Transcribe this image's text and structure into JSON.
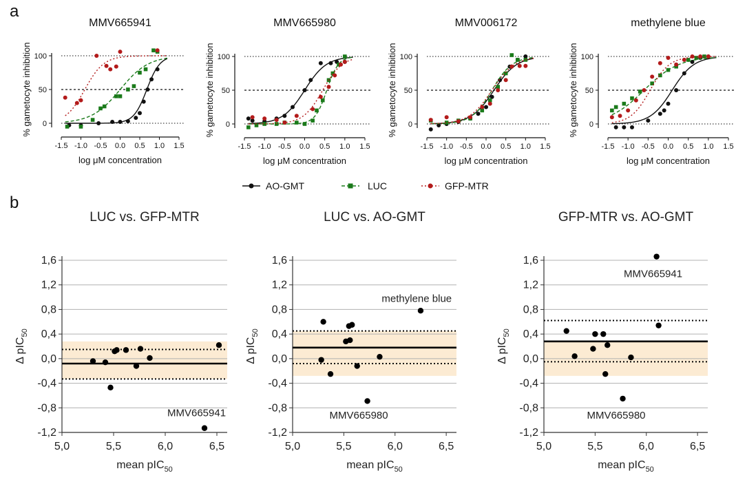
{
  "panel_labels": [
    "a",
    "b"
  ],
  "legend": [
    {
      "label": "AO-GMT",
      "color": "#111111",
      "dash": "none",
      "marker": "circle"
    },
    {
      "label": "LUC",
      "color": "#1a7a1a",
      "dash": "5,3",
      "marker": "square"
    },
    {
      "label": "GFP-MTR",
      "color": "#b31b1b",
      "dash": "2,3",
      "marker": "circle"
    }
  ],
  "chart_data": [
    {
      "type": "line",
      "title": "MMV665941",
      "xlabel": "log μM concentration",
      "ylabel": "% gametocyte inhibition",
      "xlim": [
        -1.5,
        1.5
      ],
      "ylim": [
        0,
        100
      ],
      "xticks": [
        "-1.5",
        "-1.0",
        "-0.5",
        "0.0",
        "0.5",
        "1.0",
        "1.5"
      ],
      "yticks": [
        "0",
        "50",
        "100"
      ],
      "reference_lines": [
        0,
        50,
        100
      ],
      "series": [
        {
          "name": "AO-GMT",
          "color": "#111111",
          "ec50": 0.68,
          "hill": 2.6,
          "points": [
            [
              -1.3,
              -3
            ],
            [
              -1.0,
              -3
            ],
            [
              -0.55,
              0
            ],
            [
              -0.2,
              2
            ],
            [
              0.0,
              2
            ],
            [
              0.2,
              3
            ],
            [
              0.4,
              8
            ],
            [
              0.5,
              15
            ],
            [
              0.6,
              32
            ],
            [
              0.7,
              50
            ],
            [
              0.8,
              65
            ],
            [
              0.95,
              80
            ]
          ]
        },
        {
          "name": "LUC",
          "color": "#1a7a1a",
          "ec50": 0.0,
          "hill": 1.2,
          "points": [
            [
              -1.35,
              -5
            ],
            [
              -1.0,
              -5
            ],
            [
              -0.7,
              5
            ],
            [
              -0.5,
              22
            ],
            [
              -0.4,
              25
            ],
            [
              -0.1,
              40
            ],
            [
              0.0,
              40
            ],
            [
              0.2,
              50
            ],
            [
              0.35,
              55
            ],
            [
              0.5,
              75
            ],
            [
              0.65,
              80
            ],
            [
              0.85,
              108
            ],
            [
              0.95,
              106
            ]
          ]
        },
        {
          "name": "GFP-MTR",
          "color": "#b31b1b",
          "ec50": -0.9,
          "hill": 1.8,
          "points": [
            [
              -1.4,
              38
            ],
            [
              -1.1,
              30
            ],
            [
              -1.0,
              34
            ],
            [
              -0.6,
              100
            ],
            [
              -0.35,
              85
            ],
            [
              -0.25,
              80
            ],
            [
              -0.1,
              84
            ],
            [
              0.0,
              106
            ],
            [
              0.95,
              108
            ]
          ]
        }
      ]
    },
    {
      "type": "line",
      "title": "MMV665980",
      "xlabel": "log μM concentration",
      "ylabel": "% gametocyte inhibition",
      "xlim": [
        -1.5,
        1.5
      ],
      "ylim": [
        0,
        100
      ],
      "xticks": [
        "-1.5",
        "-1.0",
        "-0.5",
        "0.0",
        "0.5",
        "1.0",
        "1.5"
      ],
      "yticks": [
        "0",
        "50",
        "100"
      ],
      "reference_lines": [
        0,
        50,
        100
      ],
      "series": [
        {
          "name": "AO-GMT",
          "color": "#111111",
          "ec50": 0.0,
          "hill": 1.6,
          "points": [
            [
              -1.4,
              8
            ],
            [
              -1.3,
              5
            ],
            [
              -1.0,
              4
            ],
            [
              -0.7,
              8
            ],
            [
              -0.5,
              12
            ],
            [
              -0.3,
              25
            ],
            [
              0.0,
              50
            ],
            [
              0.15,
              65
            ],
            [
              0.4,
              90
            ],
            [
              0.65,
              90
            ],
            [
              0.8,
              92
            ],
            [
              1.0,
              92
            ]
          ]
        },
        {
          "name": "LUC",
          "color": "#1a7a1a",
          "ec50": 0.55,
          "hill": 3.0,
          "points": [
            [
              -1.4,
              -5
            ],
            [
              -1.2,
              -2
            ],
            [
              -1.0,
              0
            ],
            [
              -0.7,
              0
            ],
            [
              -0.5,
              2
            ],
            [
              -0.2,
              2
            ],
            [
              0.0,
              0
            ],
            [
              0.2,
              5
            ],
            [
              0.3,
              20
            ],
            [
              0.45,
              35
            ],
            [
              0.6,
              65
            ],
            [
              0.7,
              75
            ],
            [
              0.85,
              88
            ],
            [
              1.0,
              100
            ]
          ]
        },
        {
          "name": "GFP-MTR",
          "color": "#b31b1b",
          "ec50": 0.45,
          "hill": 1.8,
          "points": [
            [
              -1.3,
              10
            ],
            [
              -1.0,
              8
            ],
            [
              -0.7,
              6
            ],
            [
              -0.5,
              2
            ],
            [
              -0.2,
              12
            ],
            [
              0.2,
              22
            ],
            [
              0.4,
              40
            ],
            [
              0.6,
              55
            ],
            [
              0.75,
              72
            ],
            [
              0.9,
              88
            ],
            [
              1.0,
              92
            ]
          ]
        }
      ]
    },
    {
      "type": "line",
      "title": "MMV006172",
      "xlabel": "log μM concentration",
      "ylabel": "% gametocyte inhibition",
      "xlim": [
        -1.5,
        1.5
      ],
      "ylim": [
        0,
        100
      ],
      "xticks": [
        "-1.5",
        "-1.0",
        "-0.5",
        "0.0",
        "0.5",
        "1.0",
        "1.5"
      ],
      "yticks": [
        "0",
        "50",
        "100"
      ],
      "reference_lines": [
        0,
        50,
        100
      ],
      "series": [
        {
          "name": "AO-GMT",
          "color": "#111111",
          "ec50": 0.2,
          "hill": 1.5,
          "points": [
            [
              -1.4,
              -8
            ],
            [
              -1.2,
              -2
            ],
            [
              -1.0,
              0
            ],
            [
              -0.7,
              3
            ],
            [
              -0.4,
              8
            ],
            [
              -0.2,
              15
            ],
            [
              0.0,
              25
            ],
            [
              0.15,
              40
            ],
            [
              0.35,
              65
            ],
            [
              0.6,
              85
            ],
            [
              0.8,
              95
            ],
            [
              1.0,
              100
            ]
          ]
        },
        {
          "name": "LUC",
          "color": "#1a7a1a",
          "ec50": 0.15,
          "hill": 1.7,
          "points": [
            [
              -1.4,
              5
            ],
            [
              -1.0,
              2
            ],
            [
              -0.7,
              5
            ],
            [
              -0.4,
              8
            ],
            [
              -0.1,
              20
            ],
            [
              0.1,
              35
            ],
            [
              0.3,
              55
            ],
            [
              0.5,
              75
            ],
            [
              0.65,
              102
            ],
            [
              0.8,
              95
            ],
            [
              1.0,
              95
            ]
          ]
        },
        {
          "name": "GFP-MTR",
          "color": "#b31b1b",
          "ec50": 0.15,
          "hill": 1.5,
          "points": [
            [
              -1.4,
              6
            ],
            [
              -1.0,
              10
            ],
            [
              -0.7,
              4
            ],
            [
              -0.4,
              10
            ],
            [
              -0.1,
              25
            ],
            [
              0.1,
              30
            ],
            [
              0.3,
              50
            ],
            [
              0.5,
              65
            ],
            [
              0.65,
              85
            ],
            [
              0.85,
              86
            ],
            [
              1.0,
              86
            ]
          ]
        }
      ]
    },
    {
      "type": "line",
      "title": "methylene blue",
      "xlabel": "log μM concentration",
      "ylabel": "% gametocyte inhibition",
      "xlim": [
        -1.5,
        1.5
      ],
      "ylim": [
        0,
        100
      ],
      "xticks": [
        "-1.5",
        "-1.0",
        "-0.5",
        "0.0",
        "0.5",
        "1.0",
        "1.5"
      ],
      "yticks": [
        "0",
        "50",
        "100"
      ],
      "reference_lines": [
        0,
        50,
        100
      ],
      "series": [
        {
          "name": "AO-GMT",
          "color": "#111111",
          "ec50": 0.1,
          "hill": 1.6,
          "points": [
            [
              -1.3,
              -5
            ],
            [
              -1.1,
              -5
            ],
            [
              -0.9,
              -5
            ],
            [
              -0.5,
              5
            ],
            [
              -0.2,
              15
            ],
            [
              -0.1,
              20
            ],
            [
              0.0,
              30
            ],
            [
              0.2,
              50
            ],
            [
              0.4,
              75
            ],
            [
              0.6,
              92
            ],
            [
              0.8,
              98
            ],
            [
              1.0,
              100
            ]
          ]
        },
        {
          "name": "LUC",
          "color": "#1a7a1a",
          "ec50": -0.6,
          "hill": 1.0,
          "points": [
            [
              -1.4,
              20
            ],
            [
              -1.3,
              25
            ],
            [
              -1.1,
              30
            ],
            [
              -0.9,
              38
            ],
            [
              -0.7,
              48
            ],
            [
              -0.4,
              60
            ],
            [
              -0.2,
              72
            ],
            [
              0.0,
              80
            ],
            [
              0.2,
              85
            ],
            [
              0.5,
              95
            ],
            [
              0.7,
              98
            ],
            [
              0.9,
              100
            ]
          ]
        },
        {
          "name": "GFP-MTR",
          "color": "#b31b1b",
          "ec50": -0.45,
          "hill": 1.8,
          "points": [
            [
              -1.4,
              10
            ],
            [
              -1.2,
              12
            ],
            [
              -1.0,
              20
            ],
            [
              -0.8,
              35
            ],
            [
              -0.6,
              50
            ],
            [
              -0.4,
              70
            ],
            [
              -0.2,
              90
            ],
            [
              0.0,
              98
            ],
            [
              0.2,
              88
            ],
            [
              0.4,
              95
            ],
            [
              0.6,
              100
            ],
            [
              0.8,
              100
            ],
            [
              1.0,
              100
            ]
          ]
        }
      ]
    },
    {
      "type": "scatter",
      "title": "LUC vs. GFP-MTR",
      "xlabel": "mean pIC",
      "xlabel_sub": "50",
      "ylabel": "Δ pIC",
      "ylabel_sub": "50",
      "xlim": [
        5.0,
        6.6
      ],
      "ylim": [
        -1.2,
        1.7
      ],
      "xticks": [
        "5,0",
        "5,5",
        "6,0",
        "6,5"
      ],
      "yticks": [
        "1,6",
        "1,2",
        "0,8",
        "0,4",
        "0,0",
        "-0,4",
        "-0,8",
        "-1,2"
      ],
      "mean_bias": -0.08,
      "limits_of_agreement": [
        -0.33,
        0.15
      ],
      "shaded_band": [
        -0.33,
        0.28
      ],
      "points": [
        [
          5.3,
          -0.04
        ],
        [
          5.42,
          -0.06
        ],
        [
          5.47,
          -0.47
        ],
        [
          5.51,
          0.12
        ],
        [
          5.53,
          0.14
        ],
        [
          5.62,
          0.14
        ],
        [
          5.72,
          -0.12
        ],
        [
          5.76,
          0.16
        ],
        [
          5.85,
          0.01
        ],
        [
          6.38,
          -1.13
        ],
        [
          6.52,
          0.22
        ]
      ],
      "annotations": [
        {
          "text": "MMV665941",
          "x": 6.02,
          "y": -0.88
        }
      ]
    },
    {
      "type": "scatter",
      "title": "LUC vs. AO-GMT",
      "xlabel": "mean pIC",
      "xlabel_sub": "50",
      "ylabel": "Δ pIC",
      "ylabel_sub": "50",
      "xlim": [
        5.0,
        6.6
      ],
      "ylim": [
        -1.2,
        1.7
      ],
      "xticks": [
        "5,0",
        "5,5",
        "6,0",
        "6,5"
      ],
      "yticks": [
        "1,6",
        "1,2",
        "0,8",
        "0,4",
        "0,0",
        "-0,4",
        "-0,8",
        "-1,2"
      ],
      "mean_bias": 0.18,
      "limits_of_agreement": [
        -0.08,
        0.45
      ],
      "shaded_band": [
        -0.28,
        0.45
      ],
      "points": [
        [
          5.28,
          -0.02
        ],
        [
          5.3,
          0.6
        ],
        [
          5.37,
          -0.25
        ],
        [
          5.52,
          0.28
        ],
        [
          5.55,
          0.53
        ],
        [
          5.56,
          0.3
        ],
        [
          5.58,
          0.55
        ],
        [
          5.63,
          -0.12
        ],
        [
          5.73,
          -0.69
        ],
        [
          5.85,
          0.03
        ],
        [
          6.25,
          0.78
        ]
      ],
      "annotations": [
        {
          "text": "methylene blue",
          "x": 5.87,
          "y": 0.98
        },
        {
          "text": "MMV665980",
          "x": 5.36,
          "y": -0.92
        }
      ]
    },
    {
      "type": "scatter",
      "title": "GFP-MTR vs. AO-GMT",
      "xlabel": "mean pIC",
      "xlabel_sub": "50",
      "ylabel": "Δ pIC",
      "ylabel_sub": "50",
      "xlim": [
        5.0,
        6.6
      ],
      "ylim": [
        -1.2,
        1.7
      ],
      "xticks": [
        "5,0",
        "5,5",
        "6,0",
        "6,5"
      ],
      "yticks": [
        "1,6",
        "1,2",
        "0,8",
        "0,4",
        "0,0",
        "-0,4",
        "-0,8",
        "-1,2"
      ],
      "mean_bias": 0.28,
      "limits_of_agreement": [
        -0.05,
        0.62
      ],
      "shaded_band": [
        -0.28,
        0.28
      ],
      "points": [
        [
          5.22,
          0.45
        ],
        [
          5.3,
          0.04
        ],
        [
          5.48,
          0.16
        ],
        [
          5.5,
          0.4
        ],
        [
          5.58,
          0.4
        ],
        [
          5.6,
          -0.25
        ],
        [
          5.62,
          0.22
        ],
        [
          5.77,
          -0.65
        ],
        [
          5.85,
          0.02
        ],
        [
          6.1,
          1.66
        ],
        [
          6.12,
          0.54
        ]
      ],
      "annotations": [
        {
          "text": "MMV665941",
          "x": 5.78,
          "y": 1.38
        },
        {
          "text": "MMV665980",
          "x": 5.42,
          "y": -0.92
        }
      ]
    }
  ]
}
